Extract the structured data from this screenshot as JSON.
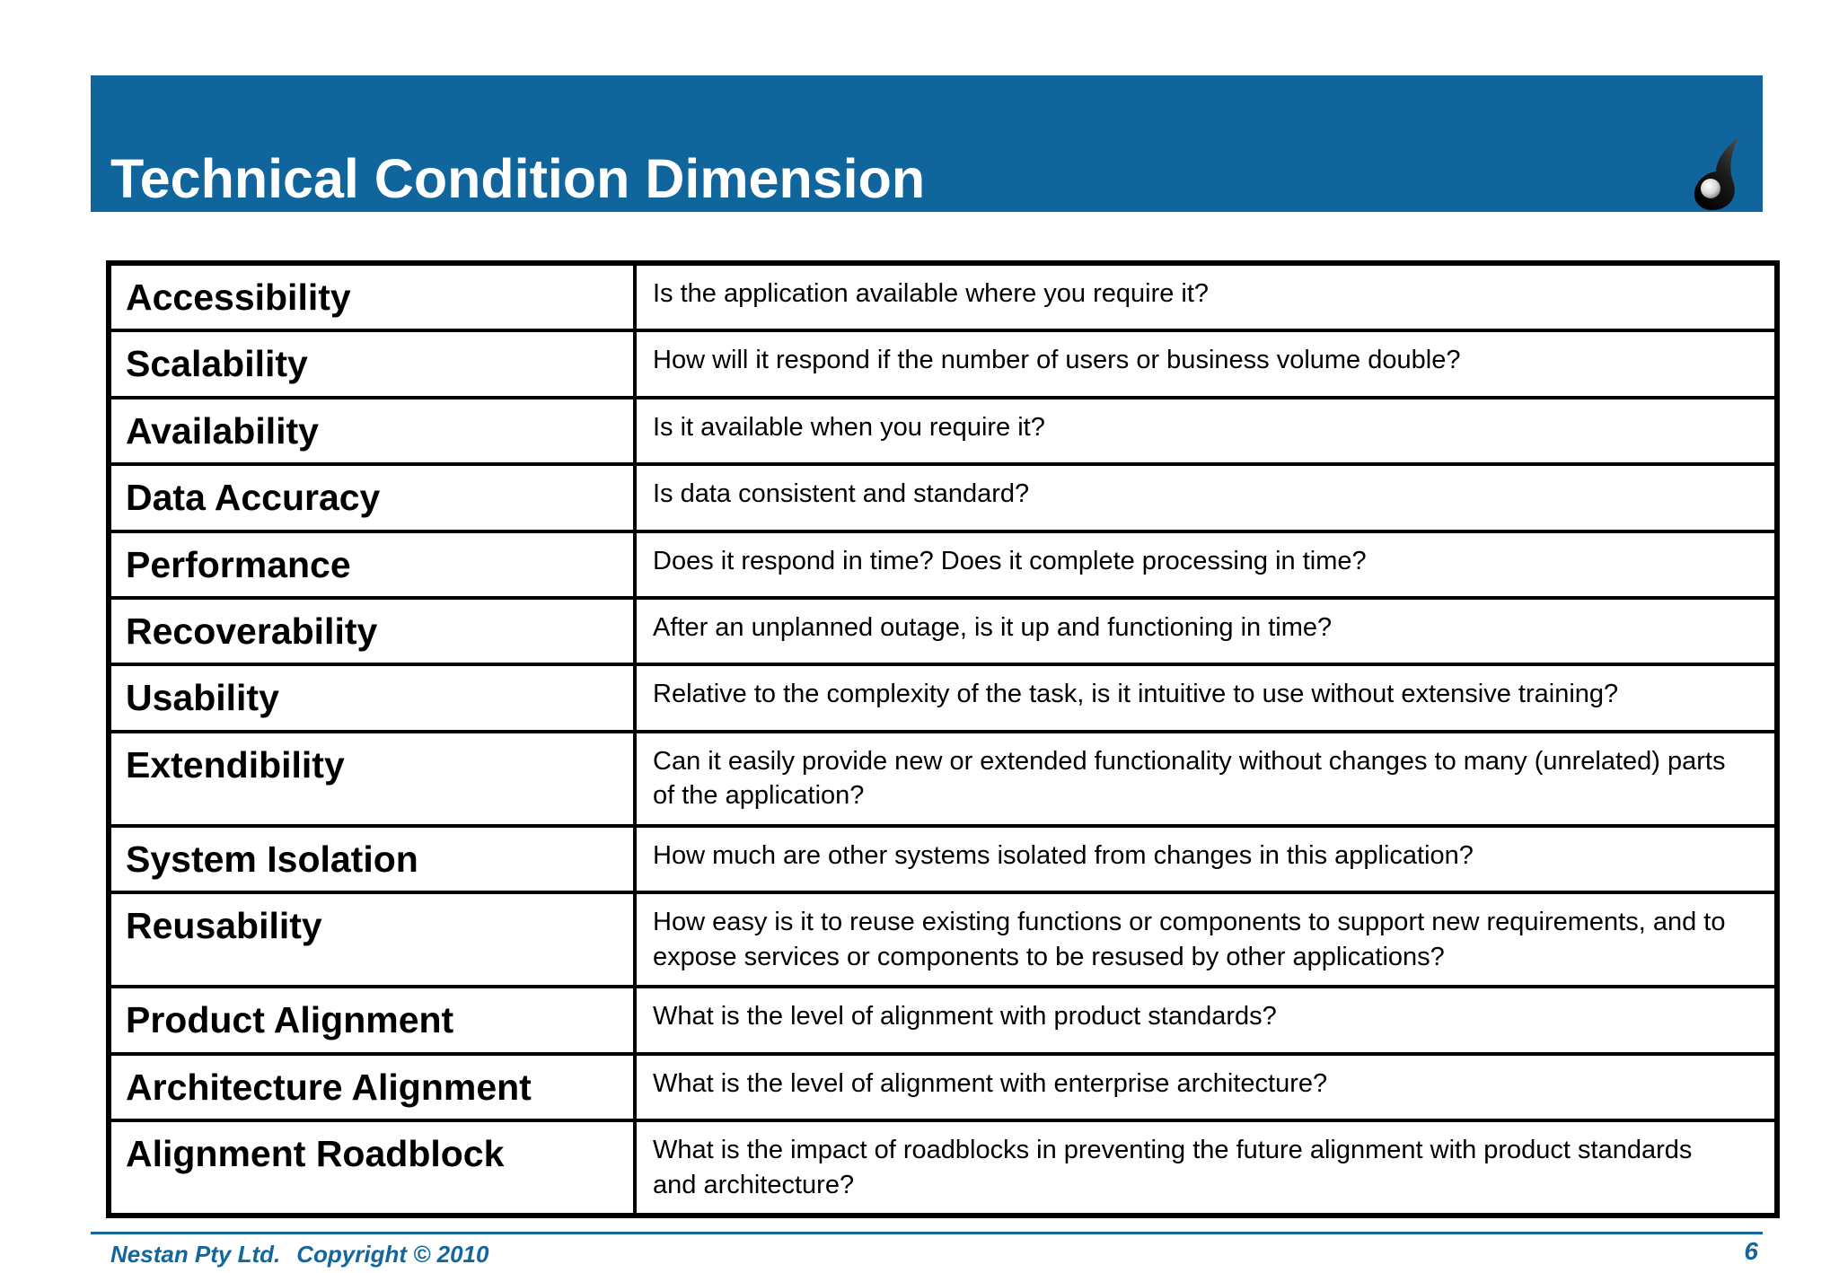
{
  "header": {
    "title": "Technical Condition Dimension"
  },
  "table": {
    "rows": [
      {
        "term": "Accessibility",
        "question": "Is the application available where you require it?"
      },
      {
        "term": "Scalability",
        "question": "How will it respond if the number of users or business volume double?"
      },
      {
        "term": "Availability",
        "question": "Is it available when you require it?"
      },
      {
        "term": "Data Accuracy",
        "question": "Is data consistent and standard?"
      },
      {
        "term": "Performance",
        "question": "Does it respond in time? Does it complete processing in time?"
      },
      {
        "term": "Recoverability",
        "question": "After an unplanned outage, is it up and functioning in time?"
      },
      {
        "term": "Usability",
        "question": "Relative to the complexity of the task, is it intuitive to use without extensive training?"
      },
      {
        "term": "Extendibility",
        "question": "Can it easily provide new or extended functionality without changes to many (unrelated) parts of the application?"
      },
      {
        "term": "System Isolation",
        "question": "How much are other systems isolated from changes in this application?"
      },
      {
        "term": "Reusability",
        "question": "How easy is it to reuse existing functions or components to support new requirements, and to expose services or components to be resused by other applications?"
      },
      {
        "term": "Product Alignment",
        "question": "What is the level of alignment with product standards?"
      },
      {
        "term": "Architecture Alignment",
        "question": "What is the level of alignment with enterprise architecture?"
      },
      {
        "term": "Alignment Roadblock",
        "question": "What is the impact of roadblocks in preventing the future alignment with product standards and architecture?"
      }
    ]
  },
  "footer": {
    "company": "Nestan Pty Ltd.",
    "copyright": "Copyright © 2010",
    "page_number": "6"
  },
  "icons": {
    "logo": "nestan-comma-logo"
  },
  "colors": {
    "header_blue": "#0f659c",
    "footer_blue": "#14679d",
    "table_border": "#000000",
    "title_text": "#ffffff"
  }
}
